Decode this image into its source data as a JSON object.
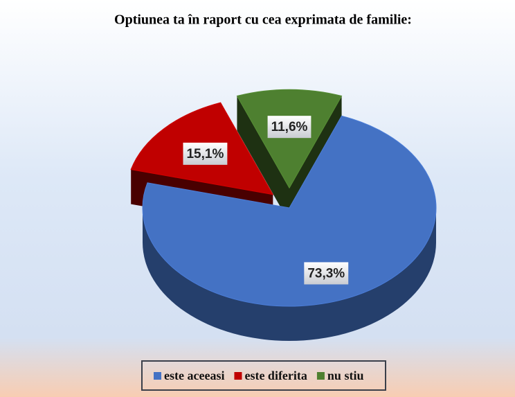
{
  "chart_data": {
    "type": "pie3d",
    "title": "Optiunea ta în raport cu cea exprimata de familie:",
    "categories": [
      "este aceeasi",
      "este diferita",
      "nu stiu"
    ],
    "values": [
      73.3,
      15.1,
      11.6
    ],
    "value_labels": [
      "73,3%",
      "15,1%",
      "11,6%"
    ],
    "colors": [
      "#4472c4",
      "#c00000",
      "#4e8030"
    ],
    "legend": "bottom"
  }
}
